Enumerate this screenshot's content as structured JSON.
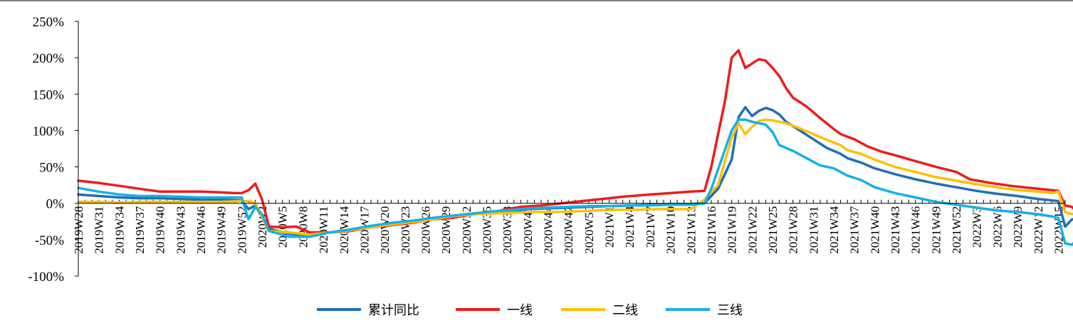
{
  "chart_data": {
    "type": "line",
    "title": "",
    "xlabel": "",
    "ylabel": "",
    "ylim": [
      -100,
      250
    ],
    "yticks": [
      "250%",
      "200%",
      "150%",
      "100%",
      "50%",
      "0%",
      "-50%",
      "-100%"
    ],
    "x_tick_labels": [
      "2019W28",
      "2019W31",
      "2019W34",
      "2019W37",
      "2019W40",
      "2019W43",
      "2019W46",
      "2019W49",
      "2019W52",
      "2020W2",
      "2020W5",
      "2020W8",
      "2020W11",
      "2020W14",
      "2020W17",
      "2020W20",
      "2020W23",
      "2020W26",
      "2020W29",
      "2020W32",
      "2020W35",
      "2020W38",
      "2020W41",
      "2020W44",
      "2020W47",
      "2020W50",
      "2021W1",
      "2021W4",
      "2021W7",
      "2021W10",
      "2021W13",
      "2021W16",
      "2021W19",
      "2021W22",
      "2021W25",
      "2021W28",
      "2021W31",
      "2021W34",
      "2021W37",
      "2021W40",
      "2021W43",
      "2021W46",
      "2021W49",
      "2021W52",
      "2022W3",
      "2022W6",
      "2022W9",
      "2022W12",
      "2022W15"
    ],
    "legend_position": "bottom",
    "grid": false,
    "series": [
      {
        "name": "累计同比",
        "color": "#1f6fb5",
        "points": [
          [
            0,
            12
          ],
          [
            3,
            10
          ],
          [
            6,
            8
          ],
          [
            9,
            7
          ],
          [
            12,
            7
          ],
          [
            15,
            6
          ],
          [
            18,
            5
          ],
          [
            21,
            5
          ],
          [
            24,
            4
          ],
          [
            25,
            -8
          ],
          [
            26,
            -3
          ],
          [
            28,
            -35
          ],
          [
            31,
            -42
          ],
          [
            34,
            -44
          ],
          [
            37,
            -40
          ],
          [
            40,
            -36
          ],
          [
            43,
            -32
          ],
          [
            46,
            -28
          ],
          [
            49,
            -25
          ],
          [
            52,
            -22
          ],
          [
            55,
            -18
          ],
          [
            58,
            -15
          ],
          [
            61,
            -13
          ],
          [
            64,
            -11
          ],
          [
            66,
            -8
          ],
          [
            69,
            -7
          ],
          [
            72,
            -6
          ],
          [
            75,
            -5
          ],
          [
            78,
            -4
          ],
          [
            81,
            -3
          ],
          [
            84,
            -2
          ],
          [
            87,
            -1
          ],
          [
            90,
            -1
          ],
          [
            92,
            0
          ],
          [
            94,
            20
          ],
          [
            96,
            60
          ],
          [
            97,
            118
          ],
          [
            98,
            132
          ],
          [
            99,
            120
          ],
          [
            100,
            127
          ],
          [
            101,
            131
          ],
          [
            102,
            128
          ],
          [
            103,
            122
          ],
          [
            104,
            112
          ],
          [
            106,
            100
          ],
          [
            108,
            88
          ],
          [
            110,
            76
          ],
          [
            112,
            68
          ],
          [
            113,
            62
          ],
          [
            115,
            56
          ],
          [
            117,
            48
          ],
          [
            120,
            40
          ],
          [
            123,
            33
          ],
          [
            126,
            27
          ],
          [
            129,
            22
          ],
          [
            132,
            17
          ],
          [
            135,
            13
          ],
          [
            138,
            10
          ],
          [
            141,
            6
          ],
          [
            143,
            4
          ],
          [
            144,
            3
          ],
          [
            145,
            -32
          ],
          [
            146,
            -22
          ],
          [
            147,
            -22
          ],
          [
            149,
            -35
          ],
          [
            150,
            -30
          ],
          [
            152,
            -28
          ],
          [
            154,
            -33
          ],
          [
            157,
            -36
          ],
          [
            160,
            -40
          ]
        ]
      },
      {
        "name": "一线",
        "color": "#ee1c1c",
        "points": [
          [
            0,
            31
          ],
          [
            3,
            28
          ],
          [
            6,
            24
          ],
          [
            9,
            20
          ],
          [
            12,
            16
          ],
          [
            15,
            16
          ],
          [
            18,
            16
          ],
          [
            21,
            15
          ],
          [
            23,
            14
          ],
          [
            24,
            14
          ],
          [
            25,
            18
          ],
          [
            26,
            27
          ],
          [
            27,
            5
          ],
          [
            28,
            -32
          ],
          [
            30,
            -33
          ],
          [
            32,
            -32
          ],
          [
            34,
            -40
          ],
          [
            37,
            -40
          ],
          [
            40,
            -38
          ],
          [
            43,
            -33
          ],
          [
            46,
            -30
          ],
          [
            49,
            -27
          ],
          [
            52,
            -22
          ],
          [
            55,
            -20
          ],
          [
            58,
            -15
          ],
          [
            61,
            -12
          ],
          [
            63,
            -8
          ],
          [
            65,
            -5
          ],
          [
            68,
            -3
          ],
          [
            71,
            0
          ],
          [
            74,
            3
          ],
          [
            77,
            6
          ],
          [
            80,
            9
          ],
          [
            84,
            12
          ],
          [
            87,
            14
          ],
          [
            90,
            16
          ],
          [
            92,
            17
          ],
          [
            93,
            50
          ],
          [
            95,
            140
          ],
          [
            96,
            200
          ],
          [
            97,
            210
          ],
          [
            98,
            186
          ],
          [
            99,
            192
          ],
          [
            100,
            198
          ],
          [
            101,
            196
          ],
          [
            102,
            186
          ],
          [
            103,
            175
          ],
          [
            104,
            158
          ],
          [
            105,
            145
          ],
          [
            107,
            133
          ],
          [
            109,
            117
          ],
          [
            111,
            102
          ],
          [
            112,
            95
          ],
          [
            114,
            88
          ],
          [
            116,
            78
          ],
          [
            118,
            71
          ],
          [
            120,
            66
          ],
          [
            123,
            58
          ],
          [
            126,
            50
          ],
          [
            129,
            43
          ],
          [
            131,
            33
          ],
          [
            134,
            28
          ],
          [
            137,
            24
          ],
          [
            140,
            21
          ],
          [
            143,
            18
          ],
          [
            144,
            17
          ],
          [
            145,
            -3
          ],
          [
            146,
            -5
          ],
          [
            147,
            -15
          ],
          [
            149,
            -38
          ],
          [
            150,
            -35
          ],
          [
            152,
            -22
          ],
          [
            154,
            -26
          ],
          [
            156,
            -32
          ],
          [
            158,
            -36
          ],
          [
            160,
            -40
          ]
        ]
      },
      {
        "name": "二线",
        "color": "#ffc000",
        "points": [
          [
            0,
            2
          ],
          [
            3,
            2
          ],
          [
            6,
            1
          ],
          [
            9,
            2
          ],
          [
            12,
            2
          ],
          [
            15,
            2
          ],
          [
            18,
            2
          ],
          [
            21,
            2
          ],
          [
            24,
            3
          ],
          [
            25,
            3
          ],
          [
            26,
            0
          ],
          [
            28,
            -38
          ],
          [
            31,
            -40
          ],
          [
            34,
            -43
          ],
          [
            37,
            -40
          ],
          [
            40,
            -37
          ],
          [
            43,
            -33
          ],
          [
            46,
            -29
          ],
          [
            49,
            -26
          ],
          [
            52,
            -22
          ],
          [
            55,
            -18
          ],
          [
            58,
            -15
          ],
          [
            61,
            -14
          ],
          [
            64,
            -13
          ],
          [
            67,
            -12
          ],
          [
            70,
            -12
          ],
          [
            73,
            -11
          ],
          [
            76,
            -10
          ],
          [
            79,
            -9
          ],
          [
            82,
            -9
          ],
          [
            85,
            -8
          ],
          [
            88,
            -8
          ],
          [
            90,
            -8
          ],
          [
            92,
            5
          ],
          [
            94,
            25
          ],
          [
            96,
            90
          ],
          [
            97,
            110
          ],
          [
            98,
            95
          ],
          [
            99,
            105
          ],
          [
            100,
            113
          ],
          [
            101,
            115
          ],
          [
            102,
            114
          ],
          [
            104,
            110
          ],
          [
            106,
            103
          ],
          [
            108,
            95
          ],
          [
            110,
            87
          ],
          [
            112,
            80
          ],
          [
            113,
            73
          ],
          [
            115,
            68
          ],
          [
            117,
            60
          ],
          [
            120,
            50
          ],
          [
            123,
            43
          ],
          [
            126,
            36
          ],
          [
            129,
            31
          ],
          [
            132,
            26
          ],
          [
            135,
            22
          ],
          [
            138,
            18
          ],
          [
            141,
            16
          ],
          [
            143,
            14
          ],
          [
            144,
            16
          ],
          [
            145,
            -12
          ],
          [
            146,
            -15
          ],
          [
            147,
            -10
          ],
          [
            149,
            -32
          ],
          [
            150,
            -20
          ],
          [
            152,
            -17
          ],
          [
            154,
            -23
          ],
          [
            156,
            -29
          ],
          [
            158,
            -33
          ],
          [
            160,
            -38
          ]
        ]
      },
      {
        "name": "三线",
        "color": "#16b0e8",
        "points": [
          [
            0,
            21
          ],
          [
            3,
            16
          ],
          [
            6,
            12
          ],
          [
            9,
            10
          ],
          [
            12,
            10
          ],
          [
            15,
            9
          ],
          [
            18,
            8
          ],
          [
            21,
            8
          ],
          [
            24,
            8
          ],
          [
            25,
            -22
          ],
          [
            26,
            -5
          ],
          [
            27,
            -15
          ],
          [
            28,
            -38
          ],
          [
            31,
            -46
          ],
          [
            34,
            -46
          ],
          [
            37,
            -40
          ],
          [
            40,
            -36
          ],
          [
            43,
            -31
          ],
          [
            46,
            -27
          ],
          [
            49,
            -24
          ],
          [
            52,
            -20
          ],
          [
            55,
            -17
          ],
          [
            58,
            -14
          ],
          [
            61,
            -11
          ],
          [
            64,
            -9
          ],
          [
            66,
            -7
          ],
          [
            69,
            -6
          ],
          [
            72,
            -5
          ],
          [
            75,
            -4
          ],
          [
            78,
            -4
          ],
          [
            81,
            -3
          ],
          [
            84,
            -3
          ],
          [
            87,
            -2
          ],
          [
            90,
            -2
          ],
          [
            92,
            0
          ],
          [
            93,
            20
          ],
          [
            96,
            100
          ],
          [
            97,
            115
          ],
          [
            98,
            115
          ],
          [
            99,
            112
          ],
          [
            100,
            110
          ],
          [
            101,
            108
          ],
          [
            102,
            98
          ],
          [
            103,
            80
          ],
          [
            105,
            72
          ],
          [
            107,
            62
          ],
          [
            109,
            52
          ],
          [
            111,
            48
          ],
          [
            113,
            38
          ],
          [
            115,
            32
          ],
          [
            117,
            22
          ],
          [
            120,
            14
          ],
          [
            123,
            8
          ],
          [
            126,
            2
          ],
          [
            129,
            -2
          ],
          [
            132,
            -6
          ],
          [
            135,
            -10
          ],
          [
            138,
            -12
          ],
          [
            141,
            -15
          ],
          [
            143,
            -18
          ],
          [
            144,
            -20
          ],
          [
            145,
            -55
          ],
          [
            146,
            -57
          ],
          [
            147,
            -47
          ],
          [
            149,
            -55
          ],
          [
            150,
            -48
          ],
          [
            152,
            -45
          ],
          [
            154,
            -47
          ],
          [
            156,
            -49
          ],
          [
            158,
            -48
          ],
          [
            160,
            -48
          ]
        ]
      }
    ]
  }
}
